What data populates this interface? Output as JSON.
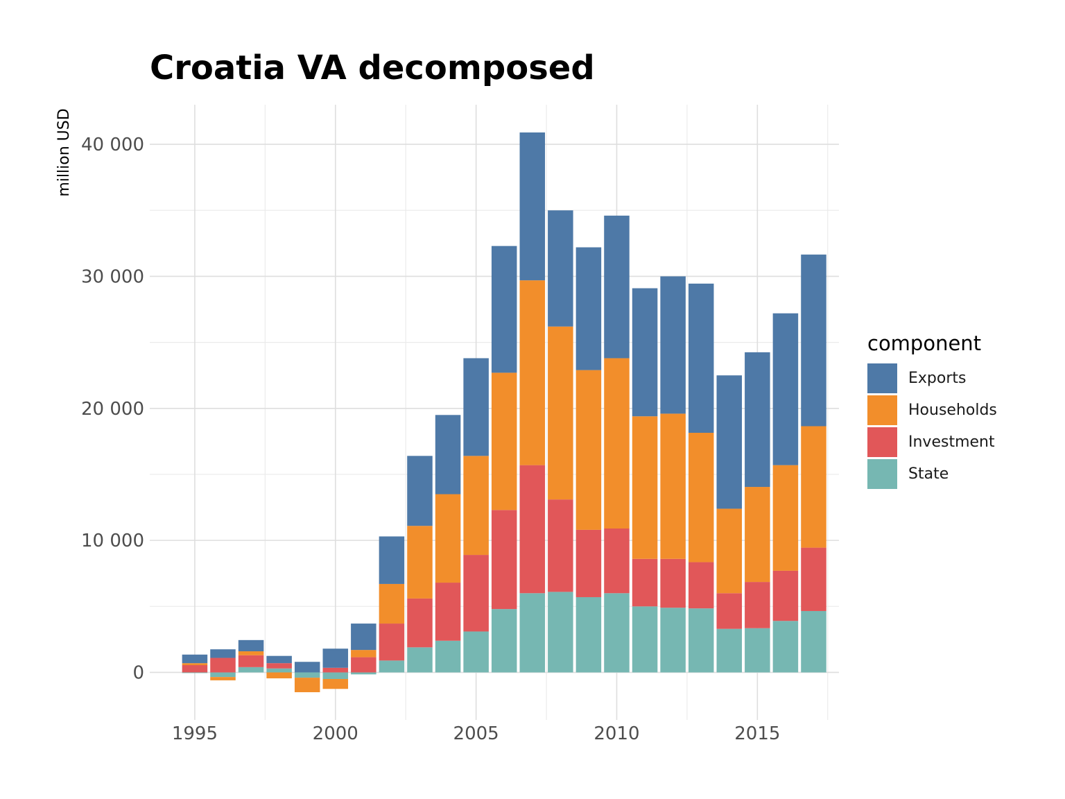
{
  "chart_data": {
    "type": "bar",
    "stacked": true,
    "title": "Croatia VA decomposed",
    "xlabel": "",
    "ylabel": "million USD",
    "x": [
      1995,
      1996,
      1997,
      1998,
      1999,
      2000,
      2001,
      2002,
      2003,
      2004,
      2005,
      2006,
      2007,
      2008,
      2009,
      2010,
      2011,
      2012,
      2013,
      2014,
      2015,
      2016,
      2017
    ],
    "xticks": [
      1995,
      2000,
      2005,
      2010,
      2015
    ],
    "xtick_labels": [
      "1995",
      "2000",
      "2005",
      "2010",
      "2015"
    ],
    "yticks": [
      0,
      10000,
      20000,
      30000,
      40000
    ],
    "ytick_labels": [
      "0",
      "10 000",
      "20 000",
      "30 000",
      "40 000"
    ],
    "xlim": [
      1993.4,
      2017.9
    ],
    "ylim": [
      -3600,
      43000
    ],
    "grid": true,
    "legend_title": "component",
    "legend_position": "right",
    "series": [
      {
        "name": "Exports",
        "color": "#4e79a7",
        "values": [
          650,
          650,
          850,
          550,
          800,
          1450,
          2000,
          3600,
          5300,
          6000,
          7400,
          9600,
          11200,
          8800,
          9300,
          10800,
          9700,
          10400,
          11300,
          10100,
          10200,
          11500,
          13000
        ]
      },
      {
        "name": "Households",
        "color": "#f28e2b",
        "values": [
          150,
          -250,
          300,
          -450,
          -1100,
          -750,
          550,
          3000,
          5500,
          6700,
          7500,
          10400,
          14000,
          13100,
          12100,
          12900,
          10800,
          11000,
          9800,
          6400,
          7200,
          8000,
          9200
        ]
      },
      {
        "name": "Investment",
        "color": "#e15759",
        "values": [
          550,
          1100,
          900,
          400,
          0,
          350,
          1150,
          2800,
          3700,
          4400,
          5800,
          7500,
          9700,
          7000,
          5100,
          4900,
          3600,
          3700,
          3500,
          2700,
          3500,
          3800,
          4800
        ]
      },
      {
        "name": "State",
        "color": "#76b7b2",
        "values": [
          -50,
          -350,
          400,
          300,
          -400,
          -500,
          -150,
          900,
          1900,
          2400,
          3100,
          4800,
          6000,
          6100,
          5700,
          6000,
          5000,
          4900,
          4850,
          3300,
          3350,
          3900,
          4650
        ]
      }
    ]
  }
}
